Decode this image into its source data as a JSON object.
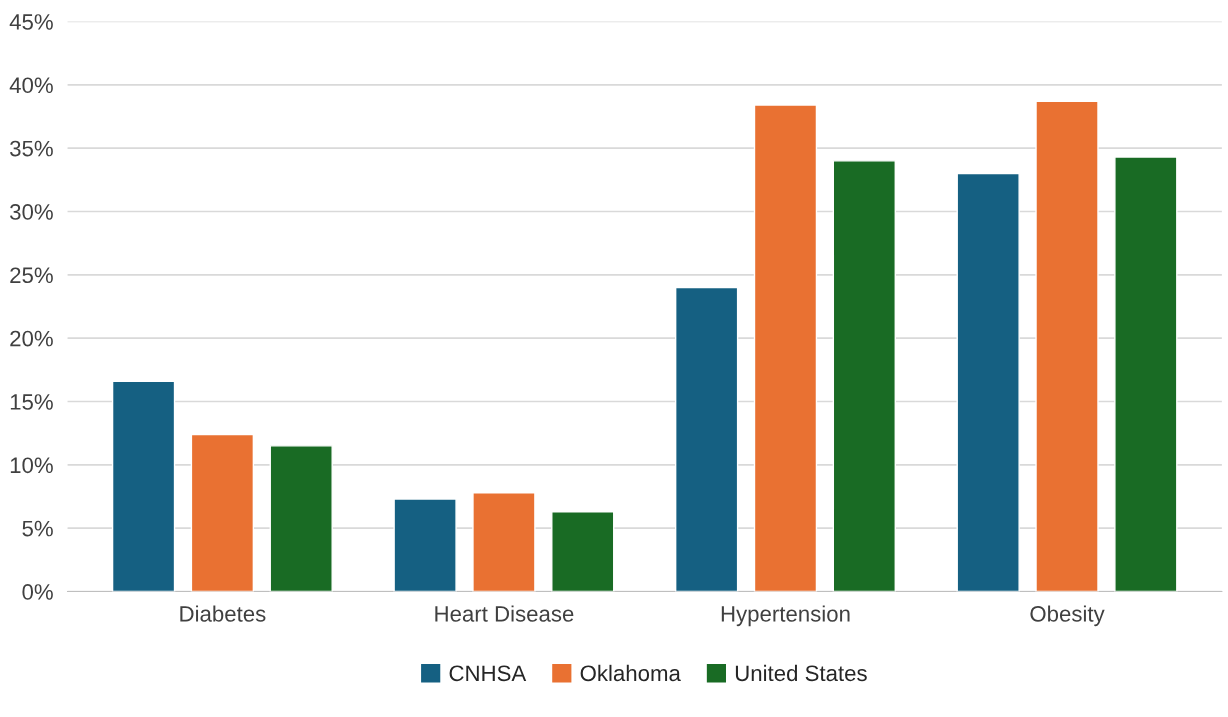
{
  "chart_data": {
    "type": "bar",
    "categories": [
      "Diabetes",
      "Heart Disease",
      "Hypertension",
      "Obesity"
    ],
    "series": [
      {
        "name": "CNHSA",
        "color": "#156082",
        "values": [
          16.6,
          7.3,
          24.0,
          33.0
        ]
      },
      {
        "name": "Oklahoma",
        "color": "#e97132",
        "values": [
          12.4,
          7.8,
          38.4,
          38.7
        ]
      },
      {
        "name": "United States",
        "color": "#196b24",
        "values": [
          11.5,
          6.3,
          34.0,
          34.3
        ]
      }
    ],
    "ylim": [
      0,
      45
    ],
    "yticks": [
      {
        "value": 0,
        "label": "0%"
      },
      {
        "value": 5,
        "label": "5%"
      },
      {
        "value": 10,
        "label": "10%"
      },
      {
        "value": 15,
        "label": "15%"
      },
      {
        "value": 20,
        "label": "20%"
      },
      {
        "value": 25,
        "label": "25%"
      },
      {
        "value": 30,
        "label": "30%"
      },
      {
        "value": 35,
        "label": "35%"
      },
      {
        "value": 40,
        "label": "40%"
      },
      {
        "value": 45,
        "label": "45%"
      }
    ],
    "grid": "y",
    "legend": "bottom"
  }
}
